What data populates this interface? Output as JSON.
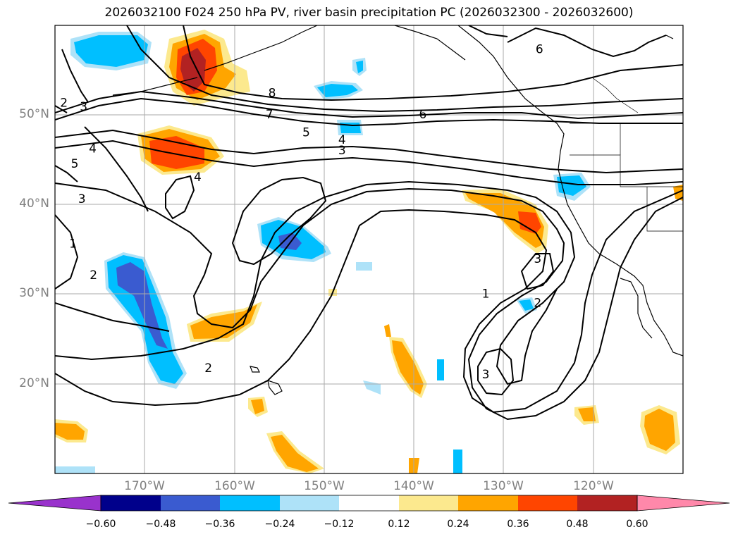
{
  "title": "2026032100 F024 250 hPa PV, river basin precipitation PC (2026032300 - 2026032600)",
  "map": {
    "projection": "PlateCarree",
    "extent_lon": [
      -180,
      -110
    ],
    "extent_lat": [
      10,
      60
    ],
    "gridlines": true,
    "coastlines": true,
    "state_borders": true,
    "lat_ticks": [
      {
        "value": 50,
        "label": "50°N"
      },
      {
        "value": 40,
        "label": "40°N"
      },
      {
        "value": 30,
        "label": "30°N"
      },
      {
        "value": 20,
        "label": "20°N"
      }
    ],
    "lon_ticks": [
      {
        "value": -170,
        "label": "170°W"
      },
      {
        "value": -160,
        "label": "160°W"
      },
      {
        "value": -150,
        "label": "150°W"
      },
      {
        "value": -140,
        "label": "140°W"
      },
      {
        "value": -130,
        "label": "130°W"
      },
      {
        "value": -120,
        "label": "120°W"
      }
    ],
    "pv_contour_labels": [
      {
        "text": "8",
        "lon": -155.8,
        "lat": 52.4
      },
      {
        "text": "7",
        "lon": -156.1,
        "lat": 50.0
      },
      {
        "text": "6",
        "lon": -139.0,
        "lat": 50.0
      },
      {
        "text": "6",
        "lon": -126.0,
        "lat": 57.3
      },
      {
        "text": "5",
        "lon": -152.0,
        "lat": 48.0
      },
      {
        "text": "4",
        "lon": -148.0,
        "lat": 47.2
      },
      {
        "text": "3",
        "lon": -148.0,
        "lat": 46.0
      },
      {
        "text": "4",
        "lon": -164.1,
        "lat": 43.0
      },
      {
        "text": "4",
        "lon": -175.8,
        "lat": 46.2
      },
      {
        "text": "5",
        "lon": -177.8,
        "lat": 44.5
      },
      {
        "text": "3",
        "lon": -176.8,
        "lat": 50.9
      },
      {
        "text": "2",
        "lon": -179.0,
        "lat": 51.3
      },
      {
        "text": "3",
        "lon": -177.0,
        "lat": 40.6
      },
      {
        "text": "1",
        "lon": -178.0,
        "lat": 35.6
      },
      {
        "text": "2",
        "lon": -175.7,
        "lat": 32.1
      },
      {
        "text": "2",
        "lon": -162.9,
        "lat": 21.7
      },
      {
        "text": "1",
        "lon": -132.0,
        "lat": 30.0
      },
      {
        "text": "3",
        "lon": -126.2,
        "lat": 33.9
      },
      {
        "text": "2",
        "lon": -126.2,
        "lat": 29.0
      },
      {
        "text": "3",
        "lon": -132.0,
        "lat": 21.0
      }
    ]
  },
  "colorbar": {
    "ticks": [
      "−0.60",
      "−0.48",
      "−0.36",
      "−0.24",
      "−0.12",
      "0.12",
      "0.24",
      "0.36",
      "0.48",
      "0.60"
    ],
    "colors": [
      "#9932CC",
      "#00008B",
      "#3A5BD0",
      "#00BFFF",
      "#AEE2F8",
      "#FFFFFF",
      "#FCE98E",
      "#FFA500",
      "#FF4500",
      "#B22222",
      "#FF88AA"
    ]
  }
}
